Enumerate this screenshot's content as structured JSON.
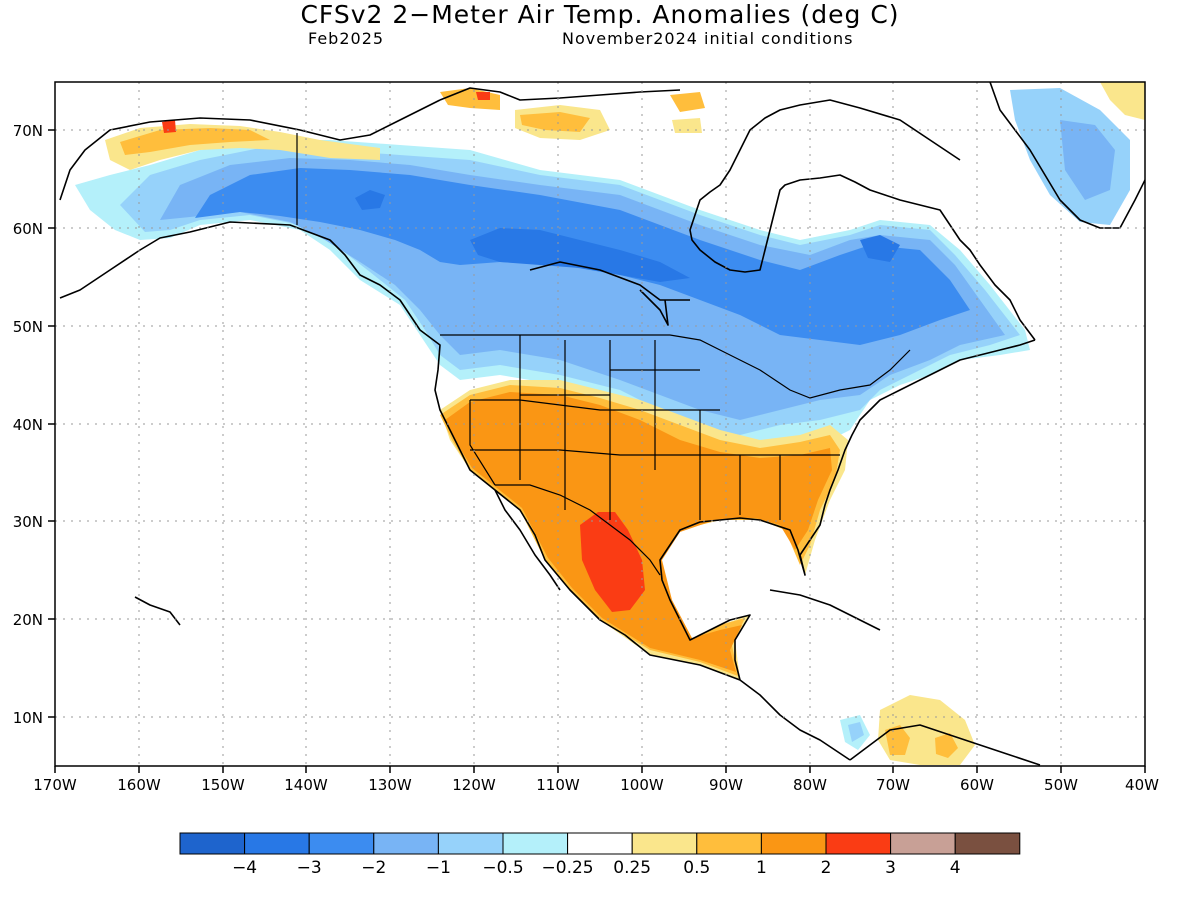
{
  "title": "CFSv2 2−Meter Air Temp. Anomalies (deg C)",
  "subtitle_left": "Feb2025",
  "subtitle_right": "November2024 initial conditions",
  "lat_labels": [
    "70N",
    "60N",
    "50N",
    "40N",
    "30N",
    "20N",
    "10N"
  ],
  "lon_labels": [
    "170W",
    "160W",
    "150W",
    "140W",
    "130W",
    "120W",
    "110W",
    "100W",
    "90W",
    "80W",
    "70W",
    "60W",
    "50W",
    "40W"
  ],
  "colorbar": {
    "colors": [
      "#1e64cd",
      "#2878e6",
      "#3c8cf0",
      "#78b4f5",
      "#96d2fa",
      "#b4f0fa",
      "#ffffff",
      "#fae68c",
      "#ffbe3c",
      "#fa9614",
      "#fa3c14",
      "#c8a096",
      "#7a5040"
    ],
    "labels": [
      "−4",
      "−3",
      "−2",
      "−1",
      "−0.5",
      "−0.25",
      "0.25",
      "0.5",
      "1",
      "2",
      "3",
      "4"
    ]
  },
  "map": {
    "region": "North America",
    "projection": "cylindrical equidistant",
    "lon_range": [
      -170,
      -40
    ],
    "lat_range": [
      5,
      75
    ],
    "grid": "dotted"
  }
}
